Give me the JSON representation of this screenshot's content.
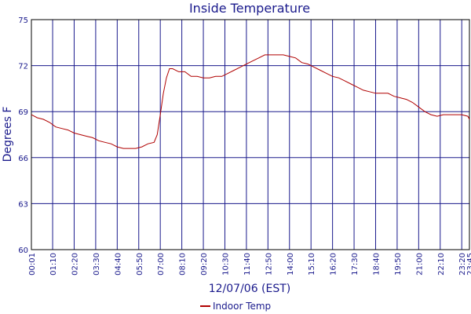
{
  "chart_data": {
    "type": "line",
    "title": "Inside Temperature",
    "xlabel": "12/07/06 (EST)",
    "ylabel": "Degrees F",
    "ylim": [
      60,
      75
    ],
    "y_ticks": [
      60,
      63,
      66,
      69,
      72,
      75
    ],
    "x_ticks": [
      "00:01",
      "01:10",
      "02:20",
      "03:30",
      "04:40",
      "05:50",
      "07:00",
      "08:10",
      "09:20",
      "10:30",
      "11:40",
      "12:50",
      "14:00",
      "15:10",
      "16:20",
      "17:30",
      "18:40",
      "19:50",
      "21:00",
      "22:10",
      "23:20",
      "23:45"
    ],
    "grid": true,
    "legend_position": "bottom-center",
    "colors": {
      "series": "#b00000",
      "grid": "#1a1a8c",
      "text": "#1a1a8c"
    },
    "series": [
      {
        "name": "Indoor Temp",
        "x": [
          "00:01",
          "00:20",
          "00:40",
          "01:00",
          "01:20",
          "01:40",
          "02:00",
          "02:20",
          "02:40",
          "03:00",
          "03:20",
          "03:40",
          "04:00",
          "04:20",
          "04:40",
          "05:00",
          "05:20",
          "05:40",
          "06:00",
          "06:20",
          "06:40",
          "06:50",
          "07:00",
          "07:10",
          "07:20",
          "07:30",
          "07:40",
          "08:00",
          "08:20",
          "08:40",
          "09:00",
          "09:20",
          "09:40",
          "10:00",
          "10:20",
          "10:40",
          "11:00",
          "11:20",
          "11:40",
          "12:00",
          "12:20",
          "12:40",
          "13:00",
          "13:20",
          "13:40",
          "14:00",
          "14:20",
          "14:40",
          "15:00",
          "15:20",
          "15:40",
          "16:00",
          "16:20",
          "16:40",
          "17:00",
          "17:20",
          "17:40",
          "18:00",
          "18:20",
          "18:40",
          "19:00",
          "19:20",
          "19:40",
          "20:00",
          "20:20",
          "20:40",
          "21:00",
          "21:20",
          "21:40",
          "22:00",
          "22:20",
          "22:40",
          "23:00",
          "23:20",
          "23:40",
          "23:45"
        ],
        "values": [
          68.8,
          68.6,
          68.5,
          68.3,
          68.0,
          67.9,
          67.8,
          67.6,
          67.5,
          67.4,
          67.3,
          67.1,
          67.0,
          66.9,
          66.7,
          66.6,
          66.6,
          66.6,
          66.7,
          66.9,
          67.0,
          67.5,
          68.8,
          70.2,
          71.2,
          71.8,
          71.8,
          71.6,
          71.6,
          71.3,
          71.3,
          71.2,
          71.2,
          71.3,
          71.3,
          71.5,
          71.7,
          71.9,
          72.1,
          72.3,
          72.5,
          72.7,
          72.7,
          72.7,
          72.7,
          72.6,
          72.5,
          72.2,
          72.1,
          71.9,
          71.7,
          71.5,
          71.3,
          71.2,
          71.0,
          70.8,
          70.6,
          70.4,
          70.3,
          70.2,
          70.2,
          70.2,
          70.0,
          69.9,
          69.8,
          69.6,
          69.3,
          69.0,
          68.8,
          68.7,
          68.8,
          68.8,
          68.8,
          68.8,
          68.7,
          68.5
        ]
      }
    ]
  }
}
